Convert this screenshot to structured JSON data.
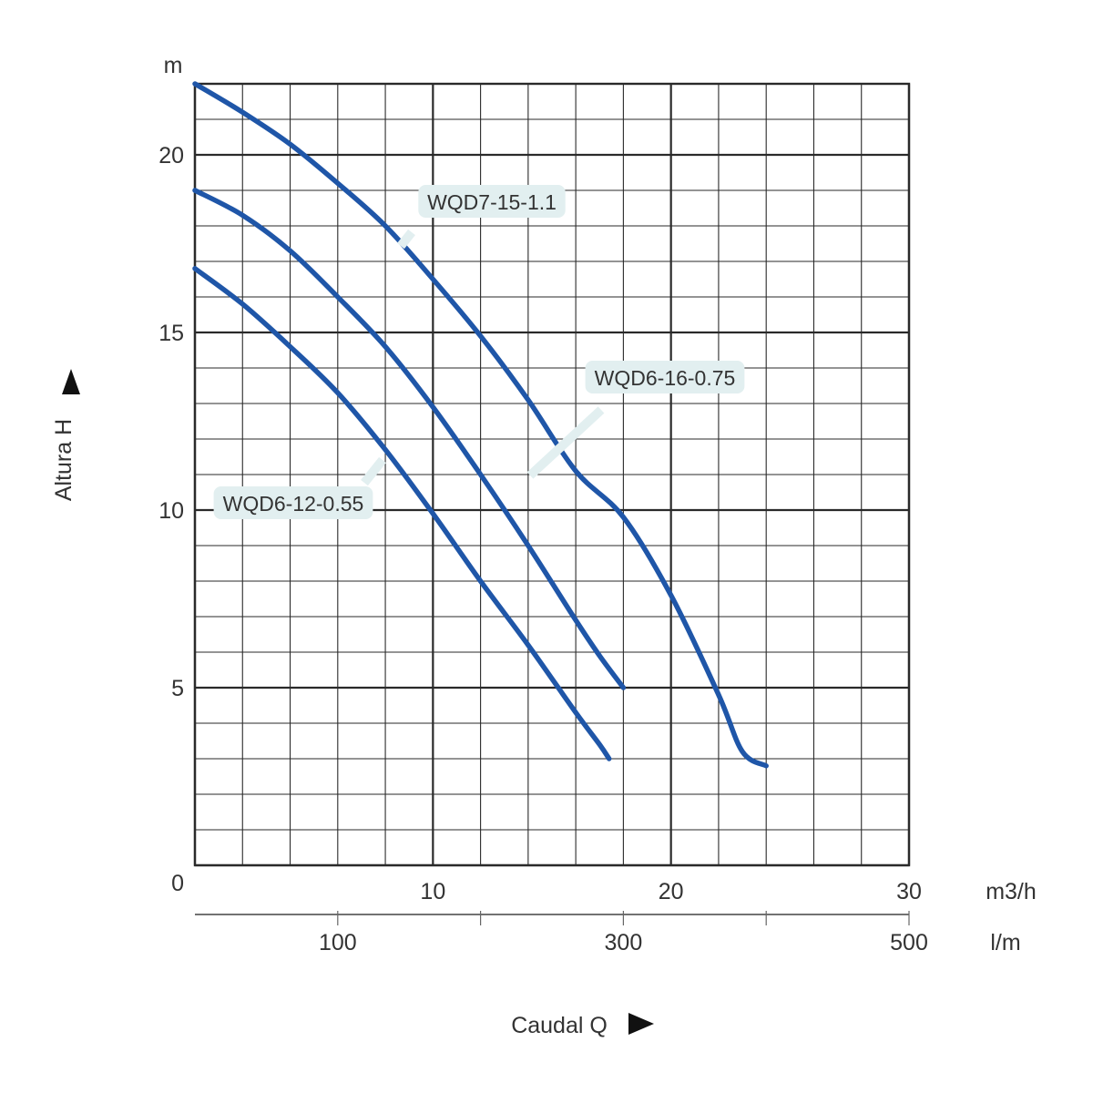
{
  "colors": {
    "curve": "#1f56a8",
    "grid": "#2a2a2a",
    "label_bg": "#e2eff0",
    "text": "#333333"
  },
  "chart_data": {
    "type": "line",
    "title": "",
    "xlabel": "Caudal  Q",
    "ylabel": "Altura  H",
    "y_unit": "m",
    "x_unit": "m3/h",
    "x2_unit": "l/m",
    "xlim": [
      0,
      30
    ],
    "ylim": [
      0,
      22
    ],
    "x_ticks": [
      "10",
      "20",
      "30"
    ],
    "y_ticks": [
      "0",
      "5",
      "10",
      "15",
      "20"
    ],
    "x2_ticks": [
      {
        "label": "100",
        "x": 6
      },
      {
        "label": "300",
        "x": 18
      },
      {
        "label": "500",
        "x": 30
      }
    ],
    "grid": true,
    "series": [
      {
        "name": "WQD7-15-1.1",
        "x": [
          0,
          2,
          4,
          6,
          8,
          10,
          12,
          14,
          16,
          18,
          20,
          22,
          23,
          24
        ],
        "y": [
          22.0,
          21.2,
          20.3,
          19.2,
          18.0,
          16.5,
          14.9,
          13.1,
          11.1,
          9.8,
          7.6,
          4.8,
          3.2,
          2.8
        ]
      },
      {
        "name": "WQD6-16-0.75",
        "x": [
          0,
          2,
          4,
          6,
          8,
          10,
          12,
          14,
          16,
          17,
          18
        ],
        "y": [
          19.0,
          18.3,
          17.3,
          16.0,
          14.6,
          12.9,
          11.0,
          9.0,
          6.9,
          5.9,
          5.0
        ]
      },
      {
        "name": "WQD6-12-0.55",
        "x": [
          0,
          2,
          4,
          6,
          8,
          10,
          12,
          14,
          16,
          17,
          17.4
        ],
        "y": [
          16.8,
          15.8,
          14.6,
          13.3,
          11.7,
          9.9,
          8.0,
          6.2,
          4.3,
          3.4,
          3.0
        ]
      }
    ]
  }
}
